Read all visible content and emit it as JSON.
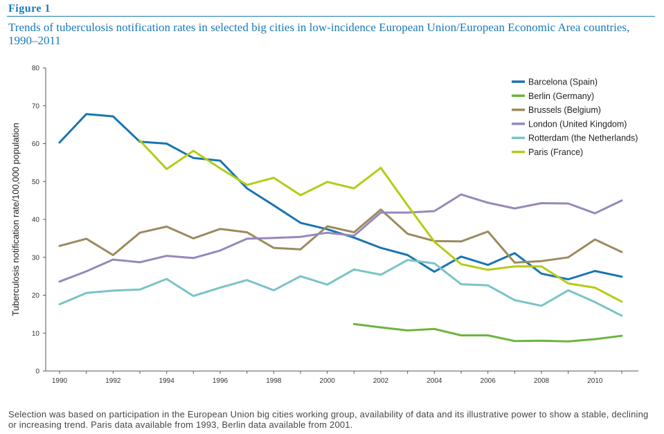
{
  "figure": {
    "label": "Figure 1",
    "title": "Trends of tuberculosis notification rates in selected big cities in low-incidence European Union/European Economic Area countries, 1990–2011",
    "note": "Selection was based on participation in the European Union big cities working group, availability of data and its illustrative power to show a stable, declining or increasing trend. Paris data available from 1993, Berlin data available from 2001."
  },
  "chart_data": {
    "type": "line",
    "title": "",
    "xlabel": "",
    "ylabel": "Tuberculosis notification rate/100,000 population",
    "xlim": [
      1990,
      2011
    ],
    "ylim": [
      0,
      80
    ],
    "x_ticks": [
      1990,
      1992,
      1994,
      1996,
      1998,
      2000,
      2002,
      2004,
      2006,
      2008,
      2010
    ],
    "y_ticks": [
      0,
      10,
      20,
      30,
      40,
      50,
      60,
      70,
      80
    ],
    "grid": false,
    "legend_position": "top-right",
    "x": [
      1990,
      1991,
      1992,
      1993,
      1994,
      1995,
      1996,
      1997,
      1998,
      1999,
      2000,
      2001,
      2002,
      2003,
      2004,
      2005,
      2006,
      2007,
      2008,
      2009,
      2010,
      2011
    ],
    "series": [
      {
        "name": "Barcelona (Spain)",
        "color": "#1a74b1",
        "values": [
          60.3,
          67.8,
          67.2,
          60.5,
          60.0,
          56.2,
          55.5,
          48.2,
          43.7,
          39.1,
          37.4,
          35.2,
          32.5,
          30.6,
          26.2,
          30.2,
          28.0,
          31.1,
          25.7,
          24.2,
          26.4,
          24.9
        ]
      },
      {
        "name": "Berlin (Germany)",
        "color": "#6cb43f",
        "values": [
          null,
          null,
          null,
          null,
          null,
          null,
          null,
          null,
          null,
          null,
          null,
          12.4,
          11.5,
          10.7,
          11.1,
          9.4,
          9.4,
          7.9,
          8.0,
          7.8,
          8.4,
          9.3
        ]
      },
      {
        "name": "Brussels (Belgium)",
        "color": "#9c8a5d",
        "values": [
          33.0,
          34.9,
          30.6,
          36.5,
          38.1,
          35.0,
          37.5,
          36.6,
          32.5,
          32.1,
          38.2,
          36.6,
          42.6,
          36.2,
          34.3,
          34.2,
          36.8,
          28.6,
          29.0,
          30.0,
          34.7,
          31.4
        ]
      },
      {
        "name": "London (United Kingdom)",
        "color": "#9787bb",
        "values": [
          23.6,
          26.3,
          29.4,
          28.7,
          30.4,
          29.8,
          31.8,
          34.9,
          35.1,
          35.4,
          36.5,
          35.7,
          41.8,
          41.8,
          42.2,
          46.6,
          44.4,
          42.9,
          44.3,
          44.2,
          41.6,
          45.0
        ]
      },
      {
        "name": "Rotterdam (the Netherlands)",
        "color": "#79c3c8",
        "values": [
          17.6,
          20.6,
          21.2,
          21.5,
          24.3,
          19.8,
          22.0,
          24.0,
          21.3,
          25.0,
          22.8,
          26.8,
          25.4,
          29.3,
          28.4,
          22.9,
          22.6,
          18.7,
          17.2,
          21.3,
          18.2,
          14.6
        ]
      },
      {
        "name": "Paris (France)",
        "color": "#b5cb16",
        "values": [
          null,
          null,
          null,
          60.8,
          53.3,
          58.1,
          53.5,
          49.1,
          51.0,
          46.4,
          49.9,
          48.2,
          53.6,
          43.7,
          34.1,
          28.2,
          26.7,
          27.6,
          27.6,
          23.1,
          22.0,
          18.3
        ]
      }
    ]
  }
}
